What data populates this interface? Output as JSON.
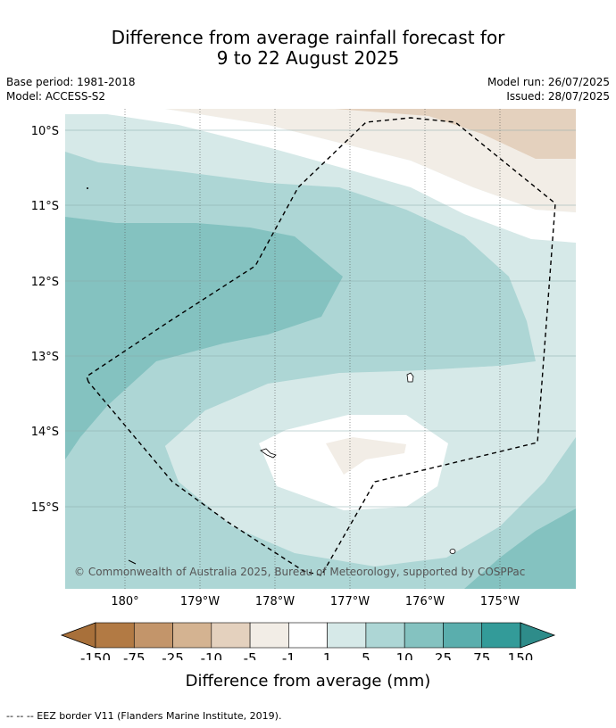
{
  "header": {
    "title_line1": "Difference from average rainfall forecast for",
    "title_line2": "9 to 22 August 2025",
    "base_period": "Base period: 1981-2018",
    "model": "Model: ACCESS-S2",
    "model_run": "Model run: 26/07/2025",
    "issued": "Issued: 28/07/2025"
  },
  "map": {
    "lat_labels": [
      "10°S",
      "11°S",
      "12°S",
      "13°S",
      "14°S",
      "15°S"
    ],
    "lon_labels": [
      "180°",
      "179°W",
      "178°W",
      "177°W",
      "176°W",
      "175°W"
    ],
    "copyright": "© Commonwealth of Australia 2025, Bureau of Meteorology, supported by COSPPac",
    "legend_line": "-- -- -- EEZ border V11 (Flanders Marine Institute, 2019)."
  },
  "colorbar": {
    "title": "Difference from average (mm)",
    "tick_labels": [
      "-150",
      "-75",
      "-25",
      "-10",
      "-5",
      "-1",
      "1",
      "5",
      "10",
      "25",
      "75",
      "150"
    ],
    "colors": [
      "#a8703a",
      "#b27a44",
      "#c3956a",
      "#d4b391",
      "#e4d1be",
      "#f2ede6",
      "#ffffff",
      "#d6e9e8",
      "#add6d5",
      "#84c2c0",
      "#5aaead",
      "#339b99",
      "#2e8c8a"
    ]
  }
}
